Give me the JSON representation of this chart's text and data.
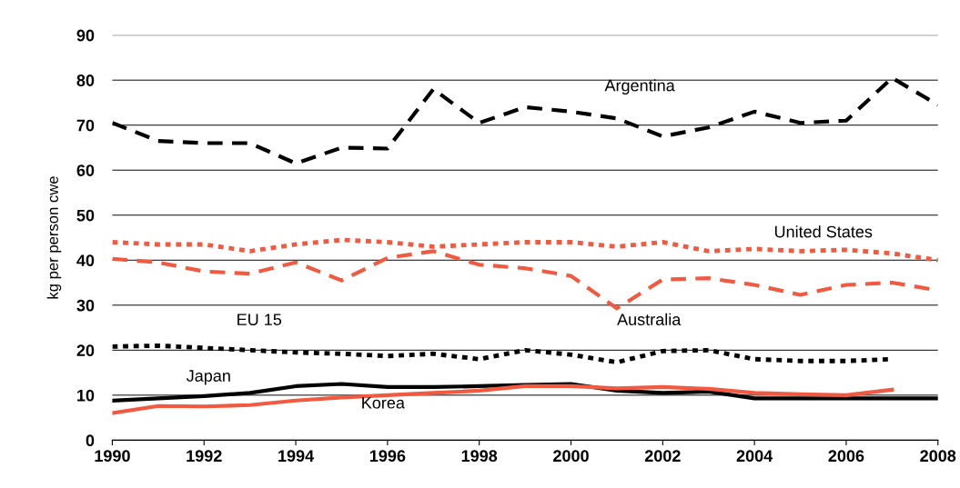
{
  "chart_data": {
    "type": "line",
    "ylabel": "kg per person cwe",
    "x": [
      1990,
      1991,
      1992,
      1993,
      1994,
      1995,
      1996,
      1997,
      1998,
      1999,
      2000,
      2001,
      2002,
      2003,
      2004,
      2005,
      2006,
      2007,
      2008
    ],
    "series": [
      {
        "name": "Argentina",
        "color": "#000000",
        "line_style": "dashed",
        "values": [
          70.5,
          66.5,
          66,
          66,
          61.5,
          65,
          64.8,
          78,
          70.5,
          74,
          73,
          71.5,
          67.5,
          69.5,
          73,
          70.5,
          71,
          80.5,
          74.5
        ]
      },
      {
        "name": "United States",
        "color": "#f15a40",
        "line_style": "dotted",
        "values": [
          44,
          43.5,
          43.5,
          42,
          43.5,
          44.5,
          44,
          43,
          43.5,
          44,
          44,
          43,
          44,
          42,
          42.5,
          42,
          42.3,
          41.5,
          40
        ]
      },
      {
        "name": "Australia",
        "color": "#f15a40",
        "line_style": "dashed",
        "values": [
          40.3,
          39.5,
          37.5,
          37,
          39.5,
          35.5,
          40.5,
          42,
          39,
          38.2,
          36.5,
          29.3,
          35.7,
          36,
          34.5,
          32.3,
          34.5,
          35,
          33.3
        ]
      },
      {
        "name": "EU 15",
        "color": "#000000",
        "line_style": "dotted",
        "values": [
          20.8,
          21,
          20.5,
          20,
          19.5,
          19.2,
          18.7,
          19.2,
          18,
          20,
          19,
          17.3,
          19.8,
          20,
          18,
          17.6,
          17.6,
          18,
          null
        ]
      },
      {
        "name": "Japan",
        "color": "#000000",
        "line_style": "solid",
        "values": [
          8.8,
          9.3,
          9.8,
          10.5,
          12,
          12.5,
          11.8,
          11.8,
          12,
          12.3,
          12.5,
          11,
          10.5,
          10.8,
          9.3,
          9.3,
          9.3,
          9.3,
          9.3
        ]
      },
      {
        "name": "Korea",
        "color": "#f15a40",
        "line_style": "solid",
        "values": [
          6,
          7.6,
          7.5,
          7.8,
          8.8,
          9.5,
          10,
          10.5,
          11,
          12,
          12,
          11.5,
          11.8,
          11.4,
          10.5,
          10.2,
          10,
          11.2,
          null
        ]
      }
    ],
    "xlim": [
      1990,
      2008
    ],
    "xticks": [
      1990,
      1992,
      1994,
      1996,
      1998,
      2000,
      2002,
      2004,
      2006,
      2008
    ],
    "ylim": [
      0,
      90
    ],
    "yticks": [
      0,
      10,
      20,
      30,
      40,
      50,
      60,
      70,
      80,
      90
    ],
    "grid": "y",
    "legend": false
  }
}
